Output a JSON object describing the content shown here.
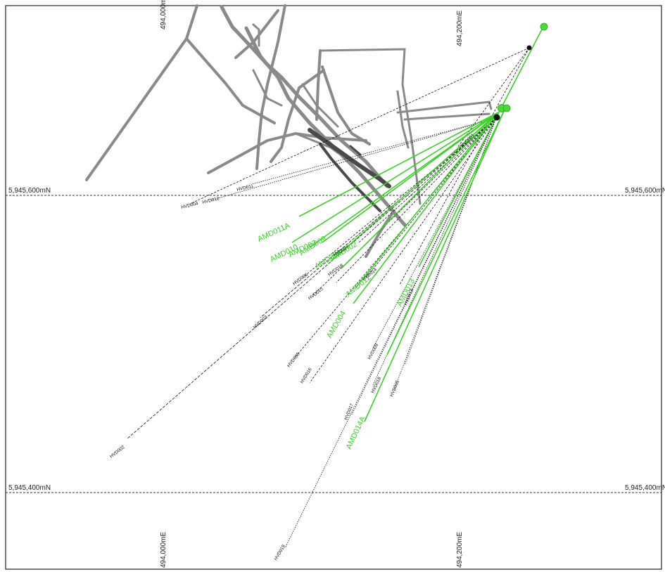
{
  "grid": {
    "easting_top_left": "494,000mE",
    "easting_top_right": "494,200mE",
    "easting_bottom_left": "494,000mE",
    "easting_bottom_right": "494,200mE",
    "northing_upper_left": "5,945,600mN",
    "northing_upper_right": "5,945,600mN",
    "northing_lower_left": "5,945,400mN",
    "northing_lower_right": "5,945,400mN"
  },
  "colors": {
    "amd": "#3ecf2c",
    "hvd": "#111111",
    "workings": "#8a8a8a",
    "workings_dark": "#4a4a4a",
    "grid": "#333333"
  },
  "holes": {
    "amd": [
      "AMD011A",
      "AMD010",
      "AMD003",
      "AMD009",
      "AMD001",
      "AMD002",
      "AMD012",
      "AMD004",
      "AMD013",
      "AMD014A"
    ],
    "hvd": [
      "HVD011",
      "HVD004",
      "HVD012",
      "HVD007",
      "HVD006",
      "HVD015",
      "HVD018",
      "HVD014",
      "HVD003",
      "HVD008",
      "HVD016",
      "HVD013",
      "HVD009",
      "HVD017",
      "HVD018",
      "HVD005",
      "HVD002",
      "HVD019",
      "HVD001"
    ]
  }
}
